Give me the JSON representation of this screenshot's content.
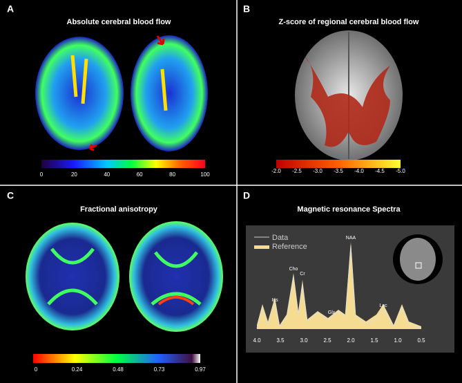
{
  "panels": [
    {
      "label": "A",
      "title": "Absolute cerebral blood flow",
      "colorbar_ticks": [
        "0",
        "20",
        "40",
        "60",
        "80",
        "100"
      ]
    },
    {
      "label": "B",
      "title": "Z-score of regional cerebral blood flow",
      "colorbar_ticks": [
        "-2.0",
        "-2.5",
        "-3.0",
        "-3.5",
        "-4.0",
        "-4.5",
        "-5.0"
      ]
    },
    {
      "label": "C",
      "title": "Fractional anisotropy",
      "colorbar_ticks": [
        "0",
        "0.24",
        "0.48",
        "0.73",
        "0.97"
      ]
    },
    {
      "label": "D",
      "title": "Magnetic resonance Spectra",
      "legend": [
        "Data",
        "Reference"
      ],
      "peaks": [
        "NAA",
        "Cr",
        "Cho",
        "Ins",
        "Glx",
        "Lac"
      ],
      "axis_ticks": [
        "4.0",
        "3.5",
        "3.0",
        "2.5",
        "2.0",
        "1.5",
        "1.0",
        "0.5"
      ]
    }
  ]
}
